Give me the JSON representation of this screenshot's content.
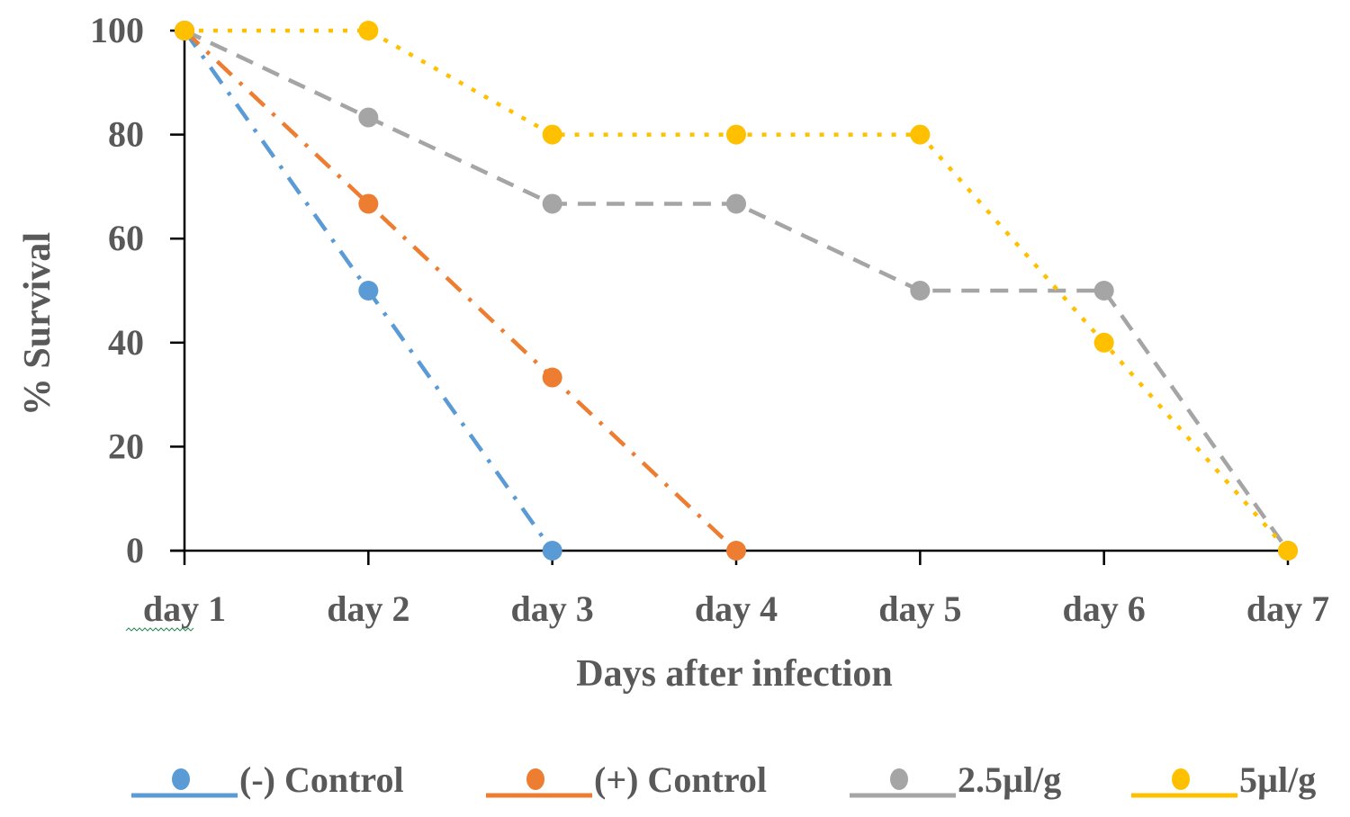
{
  "chart_data": {
    "type": "line",
    "title": "",
    "xlabel": "Days after infection",
    "ylabel": "% Survival",
    "categories": [
      "day 1",
      "day 2",
      "day 3",
      "day 4",
      "day 5",
      "day 6",
      "day 7"
    ],
    "yticks": [
      0,
      20,
      40,
      60,
      80,
      100
    ],
    "ylim": [
      0,
      100
    ],
    "grid": false,
    "legend": "bottom",
    "series": [
      {
        "name": "(-) Control",
        "color": "#5B9BD5",
        "dash": "dash-dot",
        "values": [
          100,
          50,
          0,
          null,
          null,
          null,
          null
        ]
      },
      {
        "name": "(+) Control",
        "color": "#ED7D31",
        "dash": "dash-dot",
        "values": [
          100,
          66.7,
          33.3,
          0,
          null,
          null,
          null
        ]
      },
      {
        "name": "2.5µl/g",
        "color": "#A5A5A5",
        "dash": "dash",
        "values": [
          100,
          83.3,
          66.7,
          66.7,
          50,
          50,
          0
        ]
      },
      {
        "name": "5µl/g",
        "color": "#FFC000",
        "dash": "dot",
        "values": [
          100,
          100,
          80,
          80,
          80,
          40,
          0
        ]
      }
    ]
  }
}
